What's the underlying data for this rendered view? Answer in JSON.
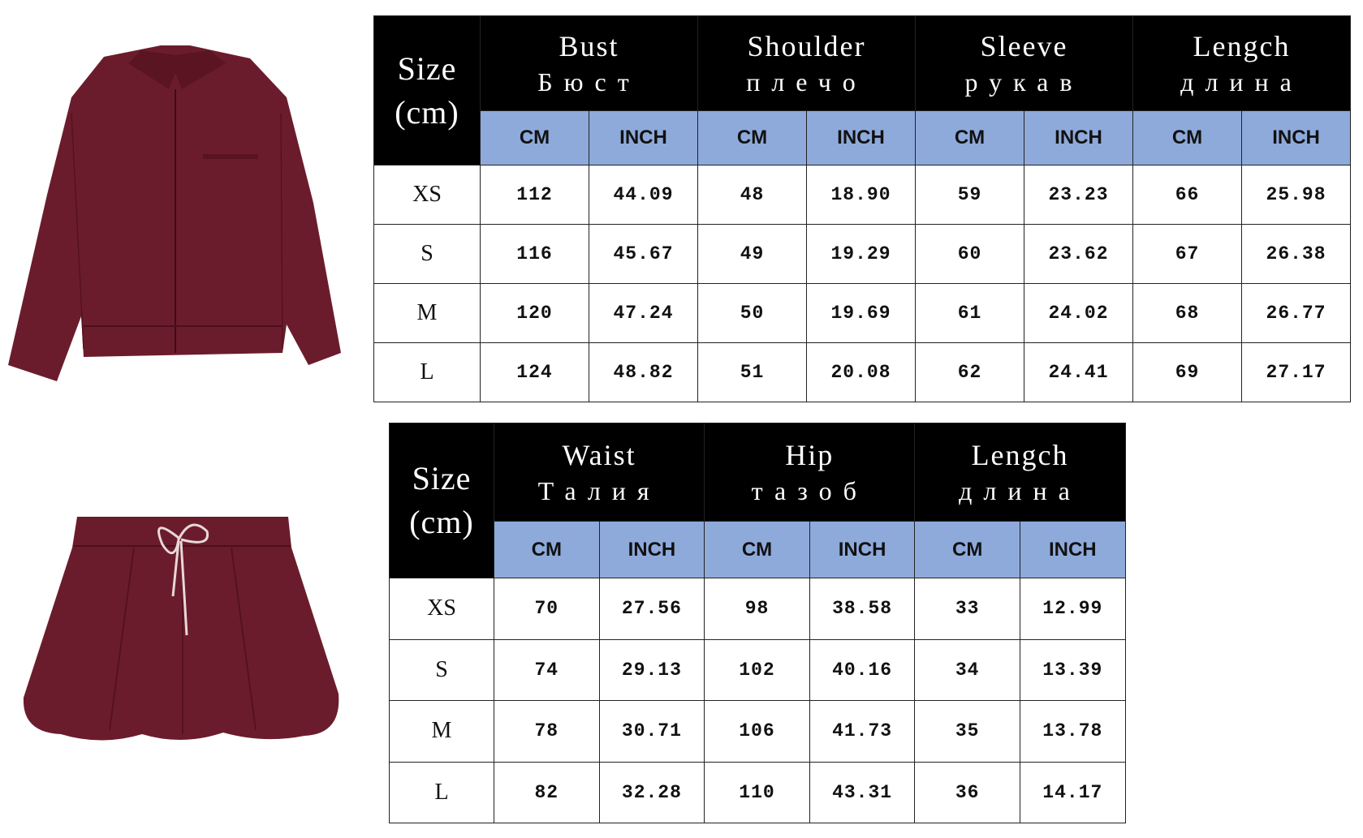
{
  "colors": {
    "header_bg": "#000000",
    "unit_bg": "#8eaadb",
    "garment": "#6b1c2c"
  },
  "images": {
    "top": "jacket-image",
    "bottom": "skirt-image"
  },
  "tables": [
    {
      "size_header": [
        "Size",
        "(cm)"
      ],
      "groups": [
        {
          "en": "Bust",
          "ru": "Бюст"
        },
        {
          "en": "Shoulder",
          "ru": "плечо"
        },
        {
          "en": "Sleeve",
          "ru": "рукав"
        },
        {
          "en": "Lengch",
          "ru": "длина"
        }
      ],
      "units": [
        "CM",
        "INCH",
        "CM",
        "INCH",
        "CM",
        "INCH",
        "CM",
        "INCH"
      ],
      "rows": [
        {
          "size": "XS",
          "values": [
            "112",
            "44.09",
            "48",
            "18.90",
            "59",
            "23.23",
            "66",
            "25.98"
          ]
        },
        {
          "size": "S",
          "values": [
            "116",
            "45.67",
            "49",
            "19.29",
            "60",
            "23.62",
            "67",
            "26.38"
          ]
        },
        {
          "size": "M",
          "values": [
            "120",
            "47.24",
            "50",
            "19.69",
            "61",
            "24.02",
            "68",
            "26.77"
          ]
        },
        {
          "size": "L",
          "values": [
            "124",
            "48.82",
            "51",
            "20.08",
            "62",
            "24.41",
            "69",
            "27.17"
          ]
        }
      ]
    },
    {
      "size_header": [
        "Size",
        "(cm)"
      ],
      "groups": [
        {
          "en": "Waist",
          "ru": "Талия"
        },
        {
          "en": "Hip",
          "ru": "тазоб"
        },
        {
          "en": "Lengch",
          "ru": "длина"
        }
      ],
      "units": [
        "CM",
        "INCH",
        "CM",
        "INCH",
        "CM",
        "INCH"
      ],
      "rows": [
        {
          "size": "XS",
          "values": [
            "70",
            "27.56",
            "98",
            "38.58",
            "33",
            "12.99"
          ]
        },
        {
          "size": "S",
          "values": [
            "74",
            "29.13",
            "102",
            "40.16",
            "34",
            "13.39"
          ]
        },
        {
          "size": "M",
          "values": [
            "78",
            "30.71",
            "106",
            "41.73",
            "35",
            "13.78"
          ]
        },
        {
          "size": "L",
          "values": [
            "82",
            "32.28",
            "110",
            "43.31",
            "36",
            "14.17"
          ]
        }
      ]
    }
  ]
}
